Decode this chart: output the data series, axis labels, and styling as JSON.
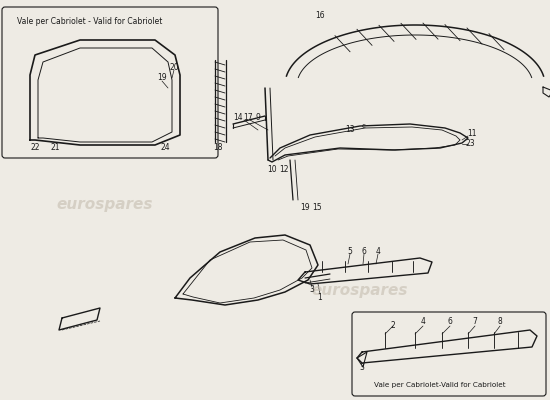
{
  "bg_color": "#eeebe4",
  "line_color": "#1a1a1a",
  "watermark_color": "#c5bdb0",
  "box1_label": "Vale per Cabriolet - Valid for Cabriolet",
  "box2_label": "Vale per Cabriolet-Valid for Cabriolet",
  "watermark_text": "eurospares",
  "fig_w": 5.5,
  "fig_h": 4.0,
  "dpi": 100
}
